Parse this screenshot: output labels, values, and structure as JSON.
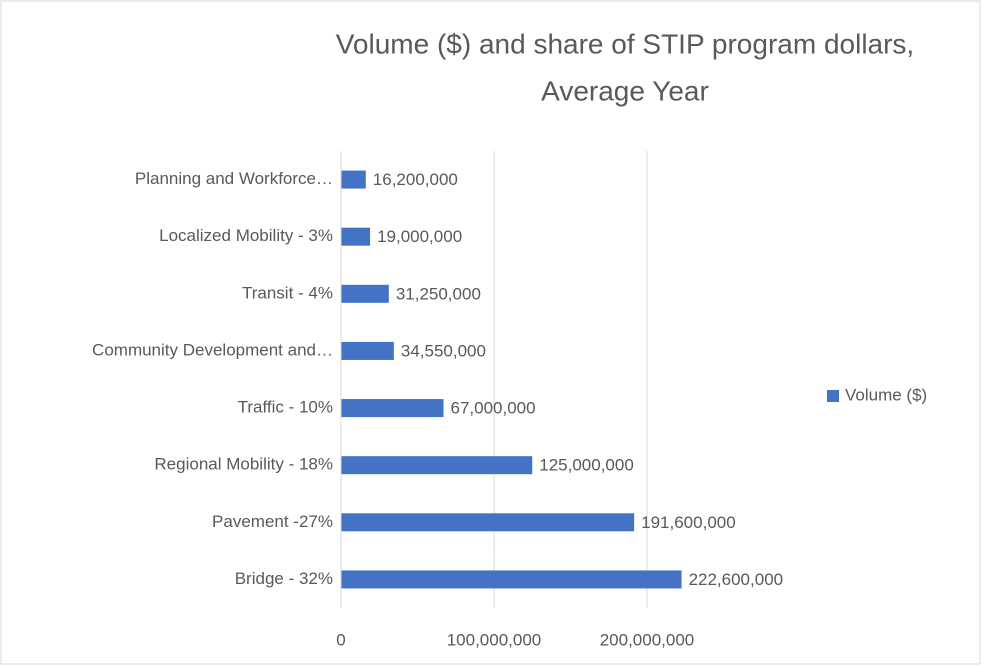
{
  "chart_data": {
    "type": "bar",
    "orientation": "horizontal",
    "title": [
      "Volume ($) and share of STIP program dollars,",
      "Average Year"
    ],
    "categories": [
      "Bridge - 32%",
      "Pavement -27%",
      "Regional Mobility - 18%",
      "Traffic - 10%",
      "Community Development and…",
      "Transit - 4%",
      "Localized Mobility - 3%",
      "Planning and Workforce…"
    ],
    "series": [
      {
        "name": "Volume ($)",
        "color": "#4472c4",
        "values": [
          222600000,
          191600000,
          125000000,
          67000000,
          34550000,
          31250000,
          19000000,
          16200000
        ],
        "value_labels": [
          "222,600,000",
          "191,600,000",
          "125,000,000",
          "67,000,000",
          "34,550,000",
          "31,250,000",
          "19,000,000",
          "16,200,000"
        ]
      }
    ],
    "xlim": [
      0,
      250000000
    ],
    "xticks": [
      0,
      {
        "value": 100000000,
        "label": "100,000,000"
      },
      {
        "value": 200000000,
        "label": "200,000,000"
      }
    ],
    "grid": true,
    "legend": "right"
  }
}
